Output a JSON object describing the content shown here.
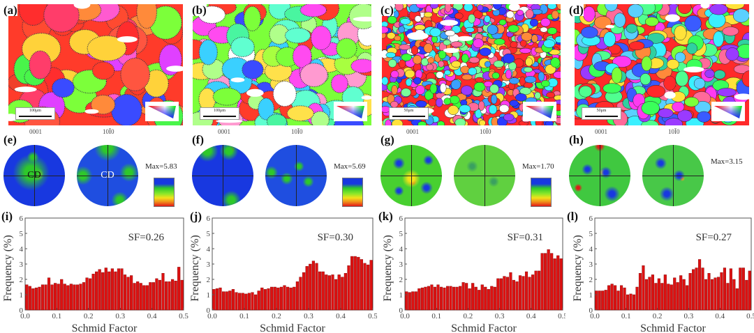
{
  "figure": {
    "panels_ebsd": [
      {
        "letter": "(a)",
        "scale": "100μm"
      },
      {
        "letter": "(b)",
        "scale": "100μm"
      },
      {
        "letter": "(c)",
        "scale": "50μm"
      },
      {
        "letter": "(d)",
        "scale": "50μm"
      }
    ],
    "ipf_key": {
      "corners": [
        "0001",
        "1010",
        "2110"
      ]
    },
    "panels_pf": [
      {
        "letter": "(e)",
        "pf1": "0001",
        "pf2": "10Ī0",
        "max": "Max=5.83",
        "cd1": "CD",
        "cd2": "CD"
      },
      {
        "letter": "(f)",
        "pf1": "0001",
        "pf2": "10Ī0",
        "max": "Max=5.69",
        "cd1": "",
        "cd2": ""
      },
      {
        "letter": "(g)",
        "pf1": "0001",
        "pf2": "10Ī0",
        "max": "Max=1.70",
        "cd1": "",
        "cd2": ""
      },
      {
        "letter": "(h)",
        "pf1": "0001",
        "pf2": "10Ī0",
        "max": "Max=3.15",
        "cd1": "",
        "cd2": ""
      }
    ],
    "colors": {
      "bar": "#dd1111",
      "bar_edge": "#7a0000",
      "axis": "#555555"
    }
  },
  "chart_data": [
    {
      "type": "bar",
      "panel": "(i)",
      "annotation": "SF=0.26",
      "xlabel": "Schmid Factor",
      "ylabel": "Frequency (%)",
      "xlim": [
        0,
        0.5
      ],
      "ylim": [
        0,
        6
      ],
      "xticks": [
        "0.0",
        "0.1",
        "0.2",
        "0.3",
        "0.4",
        "0.5"
      ],
      "yticks": [
        "0",
        "1",
        "2",
        "3",
        "4",
        "5",
        "6"
      ],
      "values": [
        1.65,
        1.55,
        1.4,
        1.45,
        1.5,
        1.65,
        1.65,
        2.1,
        1.65,
        1.75,
        1.7,
        2.0,
        1.7,
        1.6,
        1.7,
        1.65,
        1.65,
        1.7,
        1.8,
        2.1,
        2.05,
        2.35,
        2.5,
        2.65,
        2.45,
        2.75,
        2.5,
        2.7,
        2.5,
        2.7,
        2.7,
        2.3,
        2.15,
        2.25,
        1.75,
        1.85,
        1.75,
        1.6,
        1.6,
        1.8,
        1.8,
        2.05,
        1.95,
        2.4,
        1.85,
        1.85,
        2.0,
        1.9,
        2.8,
        1.95
      ]
    },
    {
      "type": "bar",
      "panel": "(j)",
      "annotation": "SF=0.30",
      "xlabel": "Schmid Factor",
      "ylabel": "Frequency (%)",
      "xlim": [
        0,
        0.5
      ],
      "ylim": [
        0,
        6
      ],
      "xticks": [
        "0.0",
        "0.1",
        "0.2",
        "0.3",
        "0.4",
        "0.5"
      ],
      "yticks": [
        "0",
        "1",
        "2",
        "3",
        "4",
        "5",
        "6"
      ],
      "values": [
        1.35,
        1.4,
        1.45,
        1.2,
        1.2,
        1.25,
        1.35,
        1.15,
        1.1,
        1.1,
        1.05,
        1.1,
        1.15,
        1.0,
        1.25,
        1.45,
        1.35,
        1.4,
        1.5,
        1.5,
        1.45,
        1.5,
        1.6,
        1.5,
        1.45,
        1.5,
        1.85,
        2.15,
        2.45,
        2.85,
        3.0,
        3.2,
        3.05,
        2.5,
        2.5,
        2.3,
        2.25,
        2.3,
        2.0,
        2.3,
        2.15,
        2.4,
        2.9,
        3.5,
        3.5,
        3.45,
        3.3,
        3.05,
        2.95,
        3.25
      ]
    },
    {
      "type": "bar",
      "panel": "(k)",
      "annotation": "SF=0.31",
      "xlabel": "Schmid Factor",
      "ylabel": "Frequency (%)",
      "xlim": [
        0,
        0.5
      ],
      "ylim": [
        0,
        6
      ],
      "xticks": [
        "0.0",
        "0.1",
        "0.2",
        "0.3",
        "0.4",
        "0.5"
      ],
      "yticks": [
        "0",
        "1",
        "2",
        "3",
        "4",
        "5",
        "6"
      ],
      "values": [
        1.2,
        1.15,
        1.2,
        1.2,
        1.4,
        1.45,
        1.5,
        1.55,
        1.65,
        1.5,
        1.65,
        1.5,
        1.45,
        1.55,
        1.55,
        1.5,
        1.5,
        1.55,
        1.8,
        1.75,
        1.4,
        1.75,
        1.5,
        1.3,
        1.65,
        1.5,
        1.35,
        1.55,
        1.5,
        2.05,
        2.05,
        2.2,
        2.15,
        2.45,
        1.95,
        1.85,
        2.25,
        2.2,
        2.5,
        2.15,
        2.3,
        2.55,
        2.55,
        3.7,
        3.7,
        3.95,
        3.7,
        3.35,
        3.55,
        3.35
      ]
    },
    {
      "type": "bar",
      "panel": "(l)",
      "annotation": "SF=0.27",
      "xlabel": "Schmid Factor",
      "ylabel": "Frequency (%)",
      "xlim": [
        0,
        0.5
      ],
      "ylim": [
        0,
        6
      ],
      "xticks": [
        "0.0",
        "0.1",
        "0.2",
        "0.3",
        "0.4",
        "0.5"
      ],
      "yticks": [
        "0",
        "1",
        "2",
        "3",
        "4",
        "5",
        "6"
      ],
      "values": [
        1.25,
        1.25,
        1.25,
        1.3,
        1.6,
        1.7,
        1.6,
        1.25,
        1.6,
        1.45,
        1.0,
        1.05,
        1.0,
        1.5,
        2.4,
        2.9,
        2.0,
        2.15,
        2.3,
        1.75,
        2.05,
        1.75,
        2.3,
        1.7,
        1.65,
        2.1,
        1.8,
        2.25,
        2.0,
        1.6,
        2.4,
        2.65,
        2.75,
        3.3,
        2.75,
        2.0,
        2.4,
        2.0,
        2.1,
        2.15,
        2.45,
        2.75,
        1.75,
        2.7,
        2.0,
        1.4,
        2.75,
        2.75,
        1.95,
        2.55
      ]
    }
  ]
}
